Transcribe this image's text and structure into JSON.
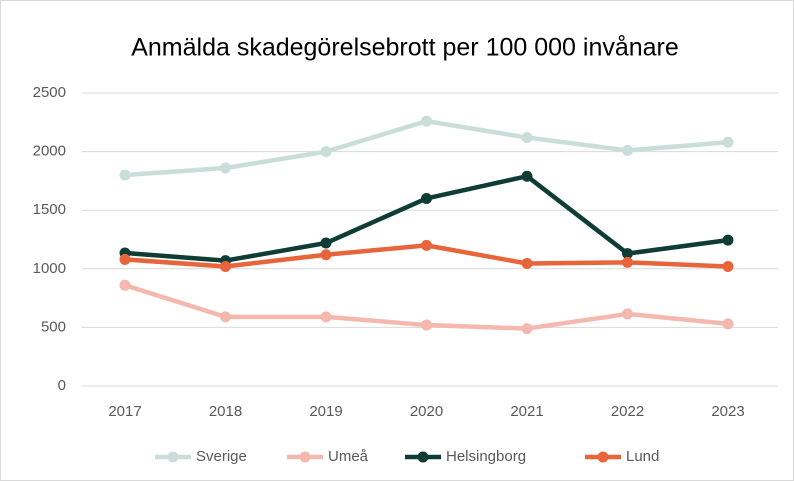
{
  "chart_data": {
    "type": "line",
    "title": "Anmälda skadegörelsebrott per 100 000 invånare",
    "categories": [
      "2017",
      "2018",
      "2019",
      "2020",
      "2021",
      "2022",
      "2023"
    ],
    "series": [
      {
        "name": "Sverige",
        "color": "#c9ded8",
        "values": [
          1800,
          1860,
          2000,
          2260,
          2120,
          2010,
          2080
        ]
      },
      {
        "name": "Umeå",
        "color": "#f4b8ae",
        "values": [
          860,
          590,
          590,
          520,
          490,
          615,
          530
        ]
      },
      {
        "name": "Helsingborg",
        "color": "#0f3d36",
        "values": [
          1135,
          1070,
          1220,
          1600,
          1790,
          1130,
          1245
        ]
      },
      {
        "name": "Lund",
        "color": "#e8643a",
        "values": [
          1080,
          1020,
          1120,
          1200,
          1045,
          1055,
          1020
        ]
      }
    ],
    "ylim": [
      0,
      2500
    ],
    "yticks": [
      0,
      500,
      1000,
      1500,
      2000,
      2500
    ],
    "grid": true,
    "legend": "bottom"
  }
}
